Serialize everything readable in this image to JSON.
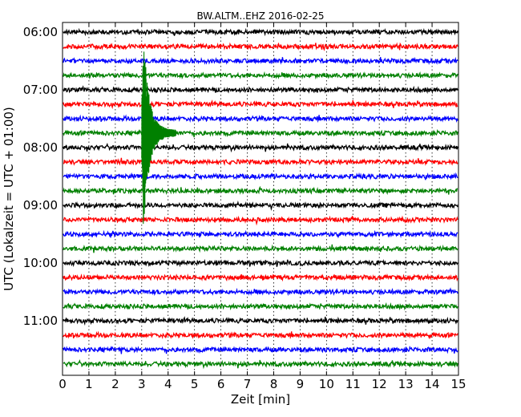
{
  "chart_data": {
    "type": "line",
    "title": "BW.ALTM..EHZ 2016-02-25",
    "xlabel": "Zeit  [min]",
    "ylabel": "UTC (Lokalzeit = UTC + 01:00)",
    "xlim": [
      0,
      15
    ],
    "x_ticks": [
      "0",
      "1",
      "2",
      "3",
      "4",
      "5",
      "6",
      "7",
      "8",
      "9",
      "10",
      "11",
      "12",
      "13",
      "14",
      "15"
    ],
    "y_tick_labels": [
      "06:00",
      "07:00",
      "08:00",
      "09:00",
      "10:00",
      "11:00"
    ],
    "grid": "dotted vertical lines at each minute",
    "trace_interval_minutes": 15,
    "trace_start_times": [
      "06:00",
      "06:15",
      "06:30",
      "06:45",
      "07:00",
      "07:15",
      "07:30",
      "07:45",
      "08:00",
      "08:15",
      "08:30",
      "08:45",
      "09:00",
      "09:15",
      "09:30",
      "09:45",
      "10:00",
      "10:15",
      "10:30",
      "10:45",
      "11:00",
      "11:15",
      "11:30",
      "11:45"
    ],
    "trace_colors": [
      "#000000",
      "#ff0000",
      "#0000ff",
      "#008000"
    ],
    "event": {
      "onset_trace_start": "07:45",
      "onset_minute": 3.0,
      "coda_end_minute": 4.3,
      "description": "large signal on green trace, amplitude spanning roughly 06:30 to 09:30 rows"
    }
  }
}
